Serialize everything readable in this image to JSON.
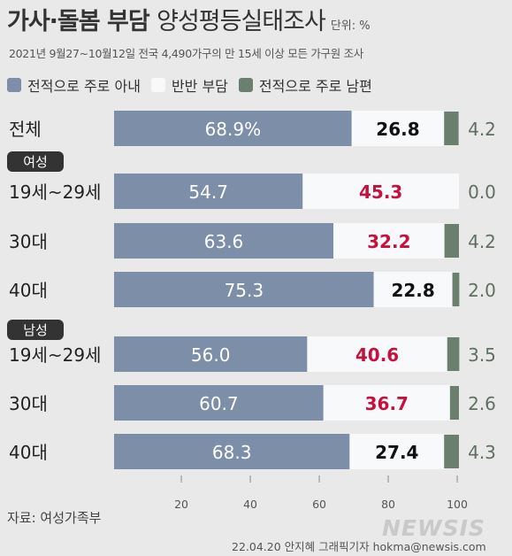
{
  "title": {
    "main": "가사·돌봄 부담",
    "light": "양성평등실태조사",
    "unit": "단위: %"
  },
  "subtitle": "2021년 9월27~10월12일 전국 4,490가구의 만 15세 이상 모든 가구원 조사",
  "source": "자료: 여성가족부",
  "credit": "22.04.20 안지혜 그래픽기자  hokma@newsis.com",
  "logo": "NEWSIS",
  "colors": {
    "wife": "#7d8ea8",
    "equal": "#f7f9fb",
    "husband": "#6b7f6e",
    "red": "#c8103e",
    "black": "#111111",
    "white": "#ffffff",
    "husband_text": "#5f6f60"
  },
  "chart_data": {
    "type": "bar",
    "stacked": true,
    "orientation": "horizontal",
    "series": [
      {
        "name": "전적으로 주로 아내",
        "values": [
          68.9,
          54.7,
          63.6,
          75.3,
          56.0,
          60.7,
          68.3
        ]
      },
      {
        "name": "반반 부담",
        "values": [
          26.8,
          45.3,
          32.2,
          22.8,
          40.6,
          36.7,
          27.4
        ]
      },
      {
        "name": "전적으로 주로 남편",
        "values": [
          4.2,
          0.0,
          4.2,
          2.0,
          3.5,
          2.6,
          4.3
        ]
      }
    ],
    "rows": [
      {
        "category": "전체",
        "group": "",
        "wife_label": "68.9%",
        "equal_label": "26.8",
        "husband_label": "4.2",
        "equal_color": "black"
      },
      {
        "category": "19세~29세",
        "group": "여성",
        "wife_label": "54.7",
        "equal_label": "45.3",
        "husband_label": "0.0",
        "equal_color": "red"
      },
      {
        "category": "30대",
        "group": "여성",
        "wife_label": "63.6",
        "equal_label": "32.2",
        "husband_label": "4.2",
        "equal_color": "red"
      },
      {
        "category": "40대",
        "group": "여성",
        "wife_label": "75.3",
        "equal_label": "22.8",
        "husband_label": "2.0",
        "equal_color": "black"
      },
      {
        "category": "19세~29세",
        "group": "남성",
        "wife_label": "56.0",
        "equal_label": "40.6",
        "husband_label": "3.5",
        "equal_color": "red"
      },
      {
        "category": "30대",
        "group": "남성",
        "wife_label": "60.7",
        "equal_label": "36.7",
        "husband_label": "2.6",
        "equal_color": "red"
      },
      {
        "category": "40대",
        "group": "남성",
        "wife_label": "68.3",
        "equal_label": "27.4",
        "husband_label": "4.3",
        "equal_color": "black"
      }
    ],
    "groups": [
      {
        "name": "여성",
        "before_row": 1
      },
      {
        "name": "남성",
        "before_row": 4
      }
    ],
    "xticks": [
      20,
      40,
      60,
      80,
      100
    ],
    "xlim": [
      0,
      100
    ]
  }
}
